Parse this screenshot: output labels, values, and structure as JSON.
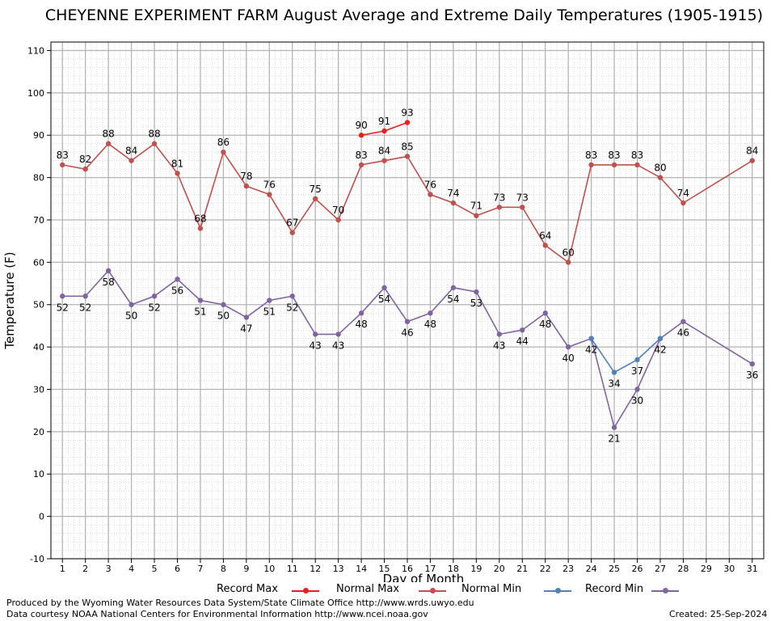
{
  "chart_data": {
    "type": "line",
    "title": "CHEYENNE EXPERIMENT FARM August Average and Extreme Daily Temperatures (1905-1915)",
    "xlabel": "Day of Month",
    "ylabel": "Temperature (F)",
    "x": [
      1,
      2,
      3,
      4,
      5,
      6,
      7,
      8,
      9,
      10,
      11,
      12,
      13,
      14,
      15,
      16,
      17,
      18,
      19,
      20,
      21,
      22,
      23,
      24,
      25,
      26,
      27,
      28,
      29,
      30,
      31
    ],
    "xlim": [
      0.5,
      31.5
    ],
    "ylim": [
      -10,
      112
    ],
    "yticks": [
      -10,
      0,
      10,
      20,
      30,
      40,
      50,
      60,
      70,
      80,
      90,
      100,
      110
    ],
    "grid": true,
    "legend_position": "bottom",
    "series": [
      {
        "name": "Record Max",
        "color": "#e8201c",
        "points": [
          [
            14,
            90
          ],
          [
            15,
            91
          ],
          [
            16,
            93
          ]
        ],
        "labels": [
          [
            14,
            90
          ],
          [
            15,
            91
          ],
          [
            16,
            93
          ]
        ]
      },
      {
        "name": "Normal Max",
        "color": "#c0504d",
        "points": [
          [
            1,
            83
          ],
          [
            2,
            82
          ],
          [
            3,
            88
          ],
          [
            4,
            84
          ],
          [
            5,
            88
          ],
          [
            6,
            81
          ],
          [
            7,
            68
          ],
          [
            8,
            86
          ],
          [
            9,
            78
          ],
          [
            10,
            76
          ],
          [
            11,
            67
          ],
          [
            12,
            75
          ],
          [
            13,
            70
          ],
          [
            14,
            83
          ],
          [
            15,
            84
          ],
          [
            16,
            85
          ],
          [
            17,
            76
          ],
          [
            18,
            74
          ],
          [
            19,
            71
          ],
          [
            20,
            73
          ],
          [
            21,
            73
          ],
          [
            22,
            64
          ],
          [
            23,
            60
          ],
          [
            24,
            83
          ],
          [
            25,
            83
          ],
          [
            26,
            83
          ],
          [
            27,
            80
          ],
          [
            28,
            74
          ],
          [
            31,
            84
          ]
        ],
        "labels": [
          [
            1,
            83
          ],
          [
            2,
            82
          ],
          [
            3,
            88
          ],
          [
            4,
            84
          ],
          [
            5,
            88
          ],
          [
            6,
            81
          ],
          [
            7,
            68
          ],
          [
            8,
            86
          ],
          [
            9,
            78
          ],
          [
            10,
            76
          ],
          [
            11,
            67
          ],
          [
            12,
            75
          ],
          [
            13,
            70
          ],
          [
            14,
            83
          ],
          [
            15,
            84
          ],
          [
            16,
            85
          ],
          [
            17,
            76
          ],
          [
            18,
            74
          ],
          [
            19,
            71
          ],
          [
            20,
            73
          ],
          [
            21,
            73
          ],
          [
            22,
            64
          ],
          [
            23,
            60
          ],
          [
            24,
            83
          ],
          [
            25,
            83
          ],
          [
            26,
            83
          ],
          [
            27,
            80
          ],
          [
            28,
            74
          ],
          [
            31,
            84
          ]
        ]
      },
      {
        "name": "Normal Min",
        "color": "#4f81bd",
        "points": [
          [
            24,
            42
          ],
          [
            25,
            34
          ],
          [
            26,
            37
          ],
          [
            27,
            42
          ]
        ],
        "labels": [
          [
            25,
            34
          ],
          [
            26,
            37
          ]
        ]
      },
      {
        "name": "Record Min",
        "color": "#8064a2",
        "points": [
          [
            1,
            52
          ],
          [
            2,
            52
          ],
          [
            3,
            58
          ],
          [
            4,
            50
          ],
          [
            5,
            52
          ],
          [
            6,
            56
          ],
          [
            7,
            51
          ],
          [
            8,
            50
          ],
          [
            9,
            47
          ],
          [
            10,
            51
          ],
          [
            11,
            52
          ],
          [
            12,
            43
          ],
          [
            13,
            43
          ],
          [
            14,
            48
          ],
          [
            15,
            54
          ],
          [
            16,
            46
          ],
          [
            17,
            48
          ],
          [
            18,
            54
          ],
          [
            19,
            53
          ],
          [
            20,
            43
          ],
          [
            21,
            44
          ],
          [
            22,
            48
          ],
          [
            23,
            40
          ],
          [
            24,
            42
          ],
          [
            25,
            21
          ],
          [
            26,
            30
          ],
          [
            27,
            42
          ],
          [
            28,
            46
          ],
          [
            31,
            36
          ]
        ],
        "labels": [
          [
            1,
            52
          ],
          [
            2,
            52
          ],
          [
            3,
            58
          ],
          [
            4,
            50
          ],
          [
            5,
            52
          ],
          [
            6,
            56
          ],
          [
            7,
            51
          ],
          [
            8,
            50
          ],
          [
            9,
            47
          ],
          [
            10,
            51
          ],
          [
            11,
            52
          ],
          [
            12,
            43
          ],
          [
            13,
            43
          ],
          [
            14,
            48
          ],
          [
            15,
            54
          ],
          [
            16,
            46
          ],
          [
            17,
            48
          ],
          [
            18,
            54
          ],
          [
            19,
            53
          ],
          [
            20,
            43
          ],
          [
            21,
            44
          ],
          [
            22,
            48
          ],
          [
            23,
            40
          ],
          [
            24,
            42
          ],
          [
            25,
            21
          ],
          [
            26,
            30
          ],
          [
            27,
            42
          ],
          [
            28,
            46
          ],
          [
            31,
            36
          ]
        ]
      }
    ]
  },
  "footer": {
    "produced_by": "Produced by the Wyoming Water Resources Data System/State Climate Office http://www.wrds.uwyo.edu",
    "courtesy": "Data courtesy NOAA National Centers for Environmental Information http://www.ncei.noaa.gov",
    "created": "Created:  25-Sep-2024"
  }
}
